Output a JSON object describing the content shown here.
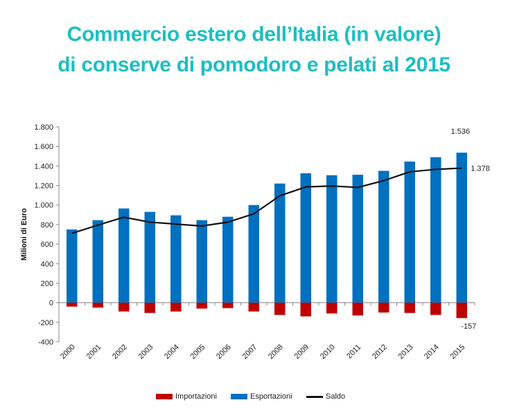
{
  "page": {
    "title_line1": "Commercio estero dell’Italia (in valore)",
    "title_line2": "di conserve di pomodoro e pelati al 2015"
  },
  "colors": {
    "title": "#1cbfc0",
    "esportazioni": "#0070c0",
    "importazioni": "#c00000",
    "saldo": "#111111"
  },
  "chart_data": {
    "type": "bar",
    "title": "",
    "xlabel": "",
    "ylabel": "Milioni di Euro",
    "ylim": [
      -400,
      1800
    ],
    "yticks": [
      -400,
      -200,
      0,
      200,
      400,
      600,
      800,
      1000,
      1200,
      1400,
      1600,
      1800
    ],
    "ytick_labels": [
      "-400",
      "-200",
      "0",
      "200",
      "400",
      "600",
      "800",
      "1.000",
      "1.200",
      "1.400",
      "1.600",
      "1.800"
    ],
    "categories": [
      "2000",
      "2001",
      "2002",
      "2003",
      "2004",
      "2005",
      "2006",
      "2007",
      "2008",
      "2009",
      "2010",
      "2011",
      "2012",
      "2013",
      "2014",
      "2015"
    ],
    "series": [
      {
        "name": "Importazioni",
        "type": "bar",
        "values": [
          -40,
          -50,
          -90,
          -105,
          -90,
          -60,
          -55,
          -90,
          -125,
          -140,
          -110,
          -130,
          -100,
          -105,
          -125,
          -157
        ]
      },
      {
        "name": "Esportazioni",
        "type": "bar",
        "values": [
          750,
          845,
          965,
          930,
          895,
          845,
          880,
          1000,
          1220,
          1325,
          1305,
          1310,
          1350,
          1445,
          1490,
          1536
        ]
      },
      {
        "name": "Saldo",
        "type": "line",
        "values": [
          710,
          795,
          875,
          825,
          805,
          785,
          825,
          910,
          1095,
          1185,
          1195,
          1180,
          1250,
          1340,
          1365,
          1378
        ]
      }
    ],
    "annotations": [
      {
        "series": "Esportazioni",
        "category": "2015",
        "label": "1.536"
      },
      {
        "series": "Saldo",
        "category": "2015",
        "label": "1.378"
      },
      {
        "series": "Importazioni",
        "category": "2015",
        "label": "-157"
      }
    ],
    "legend_position": "bottom",
    "grid": false
  }
}
